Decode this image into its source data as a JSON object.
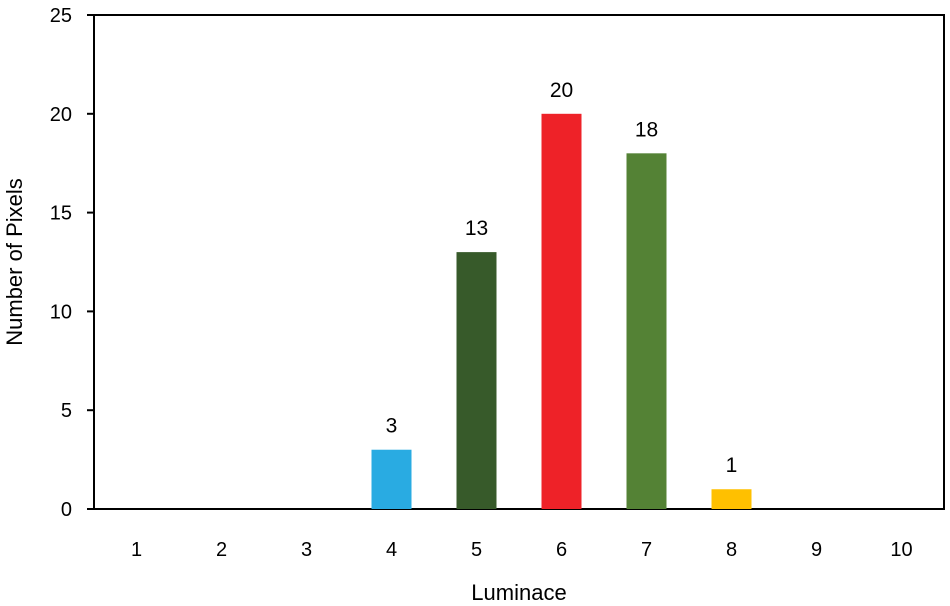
{
  "chart_data": {
    "type": "bar",
    "categories": [
      "1",
      "2",
      "3",
      "4",
      "5",
      "6",
      "7",
      "8",
      "9",
      "10"
    ],
    "values": [
      0,
      0,
      0,
      3,
      13,
      20,
      18,
      1,
      0,
      0
    ],
    "data_labels": [
      "",
      "",
      "",
      "3",
      "13",
      "20",
      "18",
      "1",
      "",
      ""
    ],
    "colors": [
      "#ffffff",
      "#ffffff",
      "#ffffff",
      "#29abe2",
      "#375a2a",
      "#ee2228",
      "#548235",
      "#ffc000",
      "#ffffff",
      "#ffffff"
    ],
    "xlabel": "Luminace",
    "ylabel": "Number of Pixels",
    "ylim": [
      0,
      25
    ],
    "yticks": [
      "0",
      "5",
      "10",
      "15",
      "20",
      "25"
    ],
    "grid": false,
    "legend": "none"
  }
}
